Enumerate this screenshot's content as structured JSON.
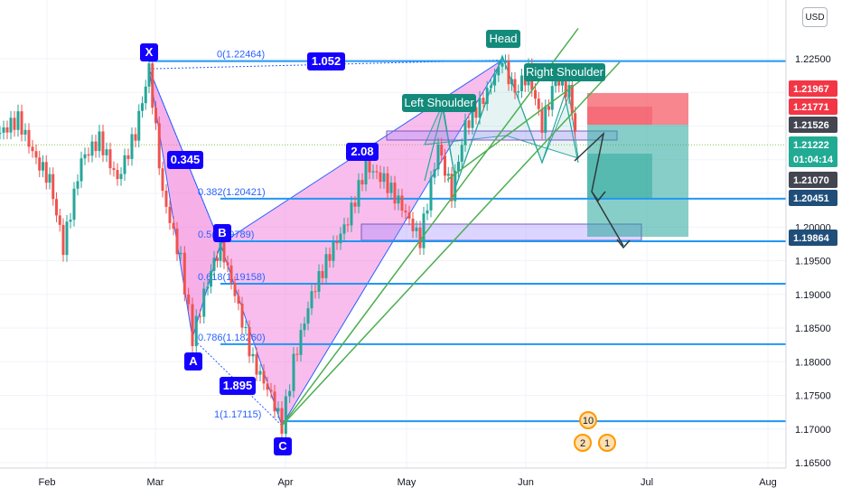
{
  "chart_data": {
    "type": "candlestick",
    "symbol_currency": "USD",
    "y_axis": {
      "ticks": [
        "1.22500",
        "1.22000",
        "1.21500",
        "1.21000",
        "1.20500",
        "1.20000",
        "1.19500",
        "1.19000",
        "1.18500",
        "1.18000",
        "1.17500",
        "1.17000",
        "1.16500"
      ]
    },
    "x_axis": {
      "ticks": [
        "Feb",
        "Mar",
        "Apr",
        "May",
        "Jun",
        "Jul",
        "Aug"
      ]
    },
    "price_labels": [
      {
        "text": "1.21967",
        "color": "#f23645"
      },
      {
        "text": "1.21771",
        "color": "#f23645"
      },
      {
        "text": "1.21526",
        "color": "#434651"
      },
      {
        "text": "1.21222",
        "color": "#22ab94"
      },
      {
        "text": "01:04:14",
        "color": "#22ab94"
      },
      {
        "text": "1.21070",
        "color": "#434651"
      },
      {
        "text": "1.20451",
        "color": "#1f4e79"
      },
      {
        "text": "1.19864",
        "color": "#1f4e79"
      }
    ],
    "fib_levels": [
      {
        "label": "0(1.22464)",
        "value": 1.22464
      },
      {
        "label": "0.382(1.20421)",
        "value": 1.20421
      },
      {
        "label": "0.5(1.19789)",
        "value": 1.19789
      },
      {
        "label": "0.618(1.19158)",
        "value": 1.19158
      },
      {
        "label": "0.786(1.18260)",
        "value": 1.1826
      },
      {
        "label": "1(1.17115)",
        "value": 1.17115
      }
    ],
    "harmonic_points": [
      {
        "label": "X",
        "value": 1.2235
      },
      {
        "label": "A",
        "value": 1.1835
      },
      {
        "label": "B",
        "value": 1.1975
      },
      {
        "label": "C",
        "value": 1.1705
      }
    ],
    "ratios": [
      "0.345",
      "1.895",
      "2.08",
      "1.052"
    ],
    "hs_labels": [
      "Head",
      "Left Shoulder",
      "Right Shoulder"
    ],
    "event_icons": [
      "10",
      "2",
      "1"
    ],
    "colors": {
      "up": "#26a69a",
      "down": "#ef5350",
      "pattern_fill": "#f06dd6",
      "level_line": "#2196f3",
      "trend_line": "#4caf50",
      "label_bg": "#1400ff"
    }
  }
}
